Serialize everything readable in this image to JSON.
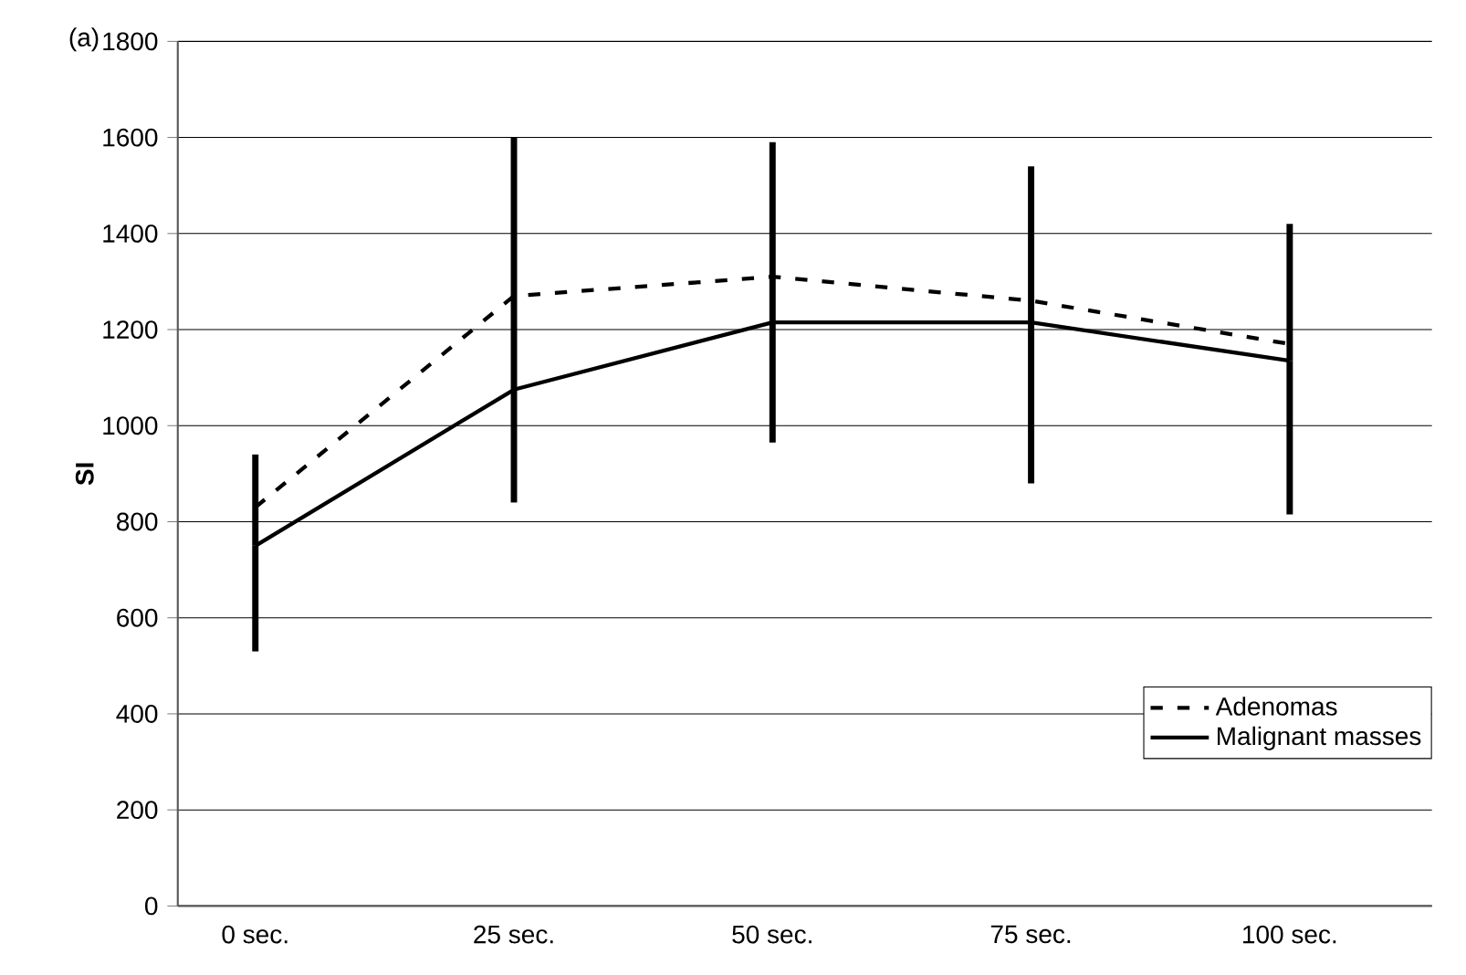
{
  "chart_data": {
    "type": "line",
    "ylabel": "SI",
    "annotations": [
      "(a)"
    ],
    "categories": [
      "0 sec.",
      "25 sec.",
      "50 sec.",
      "75 sec.",
      "100 sec."
    ],
    "series": [
      {
        "name": "Adenomas",
        "color": "#000000",
        "line_style": "dashed",
        "values": [
          830,
          1270,
          1310,
          1260,
          1170
        ]
      },
      {
        "name": "Malignant masses",
        "color": "#000000",
        "line_style": "solid",
        "values": [
          750,
          1075,
          1215,
          1215,
          1135
        ],
        "errors": [
          [
            530,
            940
          ],
          [
            840,
            1600
          ],
          [
            965,
            1590
          ],
          [
            880,
            1540
          ],
          [
            815,
            1420
          ]
        ]
      }
    ],
    "ylim": [
      0,
      1800
    ],
    "yticks": [
      0,
      200,
      400,
      600,
      800,
      1000,
      1200,
      1400,
      1600,
      1800
    ],
    "grid": "y",
    "legend": "bottom right",
    "marker": "none"
  }
}
